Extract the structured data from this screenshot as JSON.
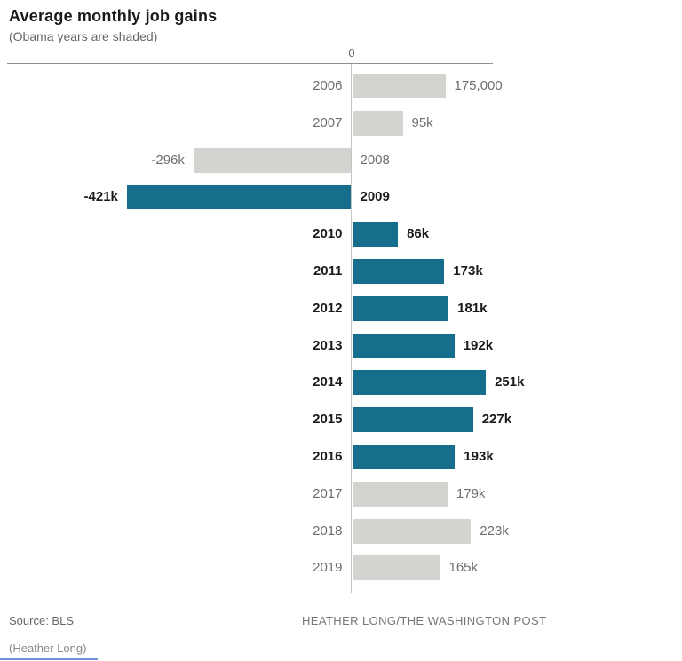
{
  "header": {
    "title": "Average monthly job gains",
    "subtitle": "(Obama years are shaded)"
  },
  "axis": {
    "zero_label": "0"
  },
  "chart_data": {
    "type": "bar",
    "orientation": "horizontal",
    "title": "Average monthly job gains",
    "subtitle": "(Obama years are shaded)",
    "x_axis": {
      "zero_tick_label": "0",
      "units": "jobs per month (thousands)"
    },
    "categories": [
      "2006",
      "2007",
      "2008",
      "2009",
      "2010",
      "2011",
      "2012",
      "2013",
      "2014",
      "2015",
      "2016",
      "2017",
      "2018",
      "2019"
    ],
    "values_k": [
      175,
      95,
      -296,
      -421,
      86,
      173,
      181,
      192,
      251,
      227,
      193,
      179,
      223,
      165
    ],
    "rows": [
      {
        "year": "2006",
        "value_k": 175,
        "label": "175,000",
        "era": "other"
      },
      {
        "year": "2007",
        "value_k": 95,
        "label": "95k",
        "era": "other"
      },
      {
        "year": "2008",
        "value_k": -296,
        "label": "-296k",
        "era": "other"
      },
      {
        "year": "2009",
        "value_k": -421,
        "label": "-421k",
        "era": "obama"
      },
      {
        "year": "2010",
        "value_k": 86,
        "label": "86k",
        "era": "obama"
      },
      {
        "year": "2011",
        "value_k": 173,
        "label": "173k",
        "era": "obama"
      },
      {
        "year": "2012",
        "value_k": 181,
        "label": "181k",
        "era": "obama"
      },
      {
        "year": "2013",
        "value_k": 192,
        "label": "192k",
        "era": "obama"
      },
      {
        "year": "2014",
        "value_k": 251,
        "label": "251k",
        "era": "obama"
      },
      {
        "year": "2015",
        "value_k": 227,
        "label": "227k",
        "era": "obama"
      },
      {
        "year": "2016",
        "value_k": 193,
        "label": "193k",
        "era": "obama"
      },
      {
        "year": "2017",
        "value_k": 179,
        "label": "179k",
        "era": "other"
      },
      {
        "year": "2018",
        "value_k": 223,
        "label": "223k",
        "era": "other"
      },
      {
        "year": "2019",
        "value_k": 165,
        "label": "165k",
        "era": "other"
      }
    ],
    "colors": {
      "obama_bar": "#146e8c",
      "other_bar": "#d3d4d0",
      "obama_text": "#1a1a1a",
      "other_text": "#6e6e6e"
    },
    "legend_note": "Teal (shaded) bars = Obama years 2009-2016; gray bars = other years"
  },
  "footer": {
    "source": "Source: BLS",
    "credit": "HEATHER LONG/THE WASHINGTON POST",
    "caption": "(Heather Long)"
  }
}
